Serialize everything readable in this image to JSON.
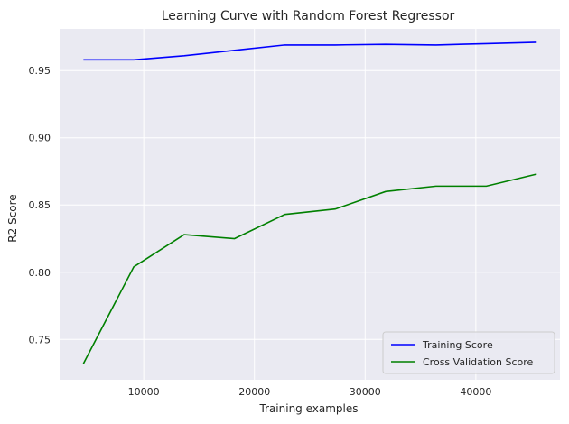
{
  "chart_data": {
    "type": "line",
    "title": "Learning Curve with Random Forest Regressor",
    "xlabel": "Training examples",
    "ylabel": "R2 Score",
    "xlim": [
      2400,
      47600
    ],
    "ylim": [
      0.72,
      0.981
    ],
    "xticks": [
      10000,
      20000,
      30000,
      40000
    ],
    "yticks": [
      0.75,
      0.8,
      0.85,
      0.9,
      0.95
    ],
    "xtick_labels": [
      "10000",
      "20000",
      "30000",
      "40000"
    ],
    "ytick_labels": [
      "0.75",
      "0.80",
      "0.85",
      "0.90",
      "0.95"
    ],
    "grid": true,
    "background": "#eaeaf2",
    "legend_position": "lower-right",
    "series": [
      {
        "name": "Training Score",
        "color": "#0000ff",
        "x": [
          4550,
          9100,
          13650,
          18200,
          22750,
          27300,
          31850,
          36400,
          40950,
          45500
        ],
        "y": [
          0.958,
          0.958,
          0.961,
          0.965,
          0.969,
          0.969,
          0.9695,
          0.969,
          0.97,
          0.971
        ]
      },
      {
        "name": "Cross Validation Score",
        "color": "#008000",
        "x": [
          4550,
          9100,
          13650,
          18200,
          22750,
          27300,
          31850,
          36400,
          40950,
          45500
        ],
        "y": [
          0.732,
          0.804,
          0.828,
          0.825,
          0.843,
          0.847,
          0.86,
          0.864,
          0.864,
          0.873
        ]
      }
    ]
  }
}
